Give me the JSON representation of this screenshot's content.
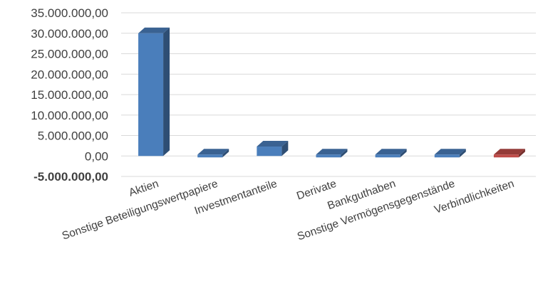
{
  "chart_data": {
    "type": "bar",
    "style": "3d-column",
    "title": "",
    "xlabel": "",
    "ylabel": "",
    "ylim": [
      -5000000,
      35000000
    ],
    "yticks": [
      35000000,
      30000000,
      25000000,
      20000000,
      15000000,
      10000000,
      5000000,
      0,
      -5000000
    ],
    "ytick_labels": [
      "35.000.000,00",
      "30.000.000,00",
      "25.000.000,00",
      "20.000.000,00",
      "15.000.000,00",
      "10.000.000,00",
      "5.000.000,00",
      "0,00",
      "-5.000.000,00"
    ],
    "grid": true,
    "legend": "none",
    "categories": [
      "Aktien",
      "Sonstige Beteiligungswertpapiere",
      "Investmentanteile",
      "Derivate",
      "Bankguthaben",
      "Sonstige Vermögensgegenstände",
      "Verbindlichkeiten"
    ],
    "values": [
      30000000,
      0,
      2300000,
      0,
      0,
      0,
      -100000
    ],
    "colors": {
      "positive": "#4a7ebb",
      "negative": "#be4b48",
      "grid": "#d9d9d9",
      "text": "#404040"
    }
  }
}
